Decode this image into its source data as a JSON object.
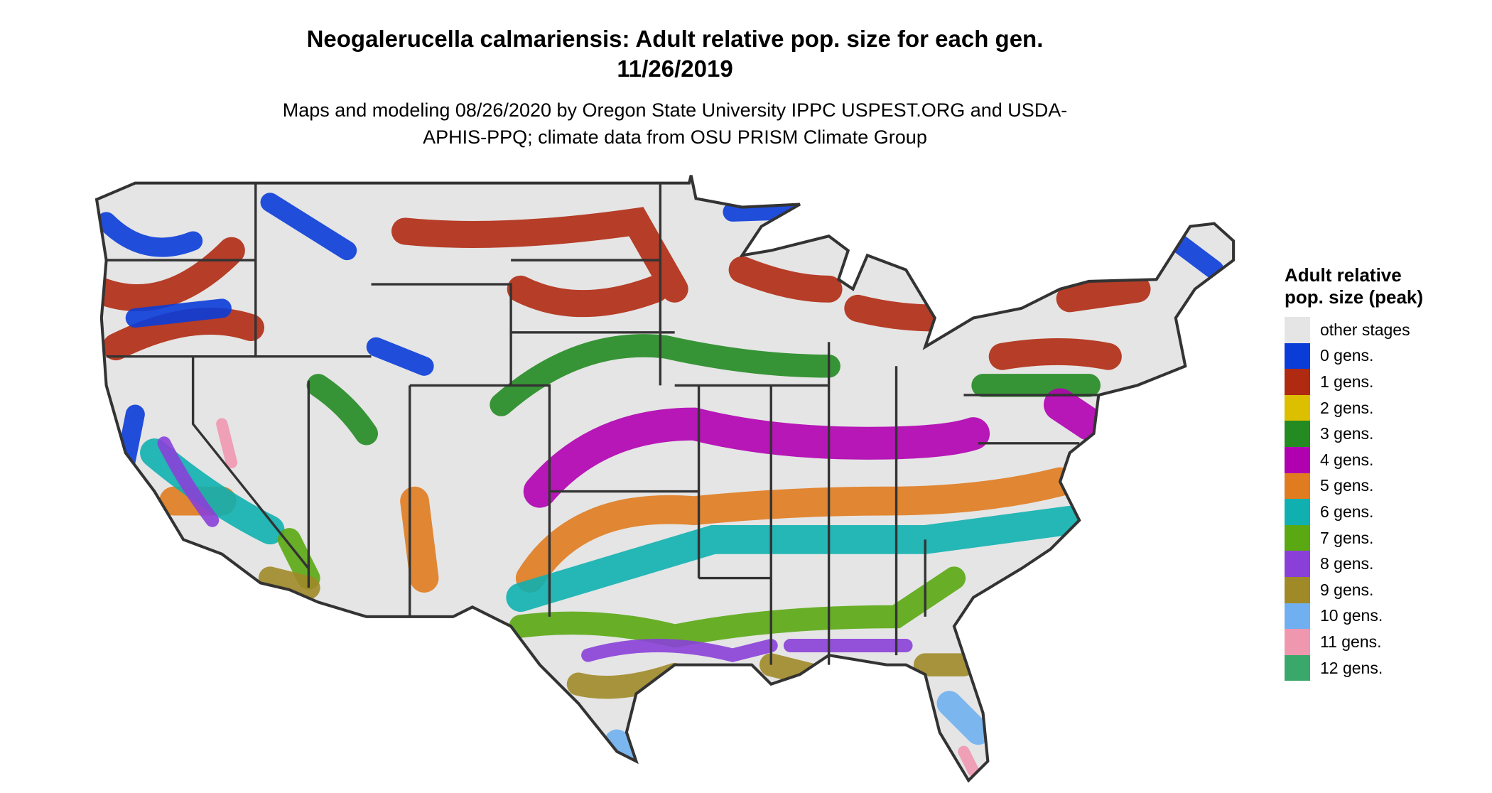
{
  "title": "Neogalerucella calmariensis: Adult relative pop. size for each gen. 11/26/2019",
  "subtitle": "Maps and modeling 08/26/2020 by Oregon State University IPPC USPEST.ORG and USDA-APHIS-PPQ; climate data from OSU PRISM Climate Group",
  "legend": {
    "title": "Adult relative pop. size (peak)",
    "items": [
      {
        "label": "other stages",
        "color": "#e5e5e5"
      },
      {
        "label": "0 gens.",
        "color": "#0a3cd8"
      },
      {
        "label": "1 gens.",
        "color": "#b02a12"
      },
      {
        "label": "2 gens.",
        "color": "#dcc000"
      },
      {
        "label": "3 gens.",
        "color": "#238b22"
      },
      {
        "label": "4 gens.",
        "color": "#b000b0"
      },
      {
        "label": "5 gens.",
        "color": "#e07b1f"
      },
      {
        "label": "6 gens.",
        "color": "#10b0b0"
      },
      {
        "label": "7 gens.",
        "color": "#5aa812"
      },
      {
        "label": "8 gens.",
        "color": "#8a40d8"
      },
      {
        "label": "9 gens.",
        "color": "#a08a28"
      },
      {
        "label": "10 gens.",
        "color": "#70b0f0"
      },
      {
        "label": "11 gens.",
        "color": "#f097b0"
      },
      {
        "label": "12 gens.",
        "color": "#3aa86a"
      }
    ]
  }
}
